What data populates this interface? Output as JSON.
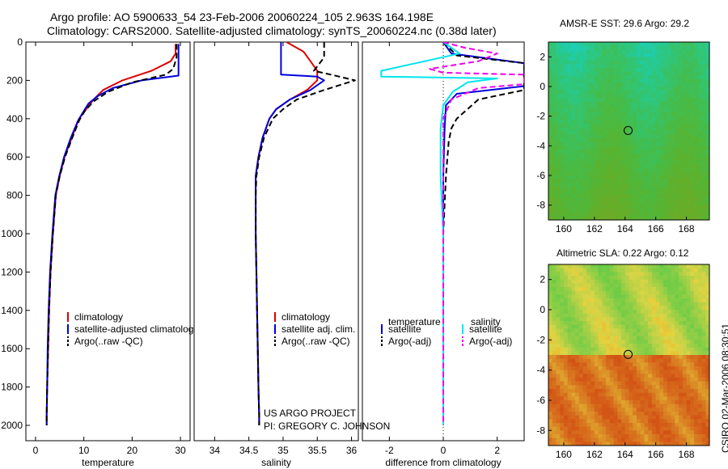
{
  "title": {
    "line1": "Argo profile: AO 5900633_54 23-Feb-2006 20060224_105 2.963S 164.198E",
    "line2": "Climatology: CARS2000. Satellite-adjusted climatology: synTS_20060224.nc (0.38d later)"
  },
  "colors": {
    "red": "#dd0000",
    "blue": "#0000dd",
    "black": "#000000",
    "cyan": "#00e5ee",
    "magenta": "#ee00ee"
  },
  "credits": {
    "project": "US ARGO PROJECT",
    "pi": "PI: GREGORY C. JOHNSON"
  },
  "stamp": "CSIRO 02-Mar-2006 08:30:51",
  "chart_data": [
    {
      "type": "line",
      "xlabel": "temperature",
      "ylabel": "",
      "xlim": [
        -2,
        32
      ],
      "ylim": [
        0,
        2080
      ],
      "xticks": [
        0,
        10,
        20,
        30
      ],
      "yticks": [
        0,
        200,
        400,
        600,
        800,
        1000,
        1200,
        1400,
        1600,
        1800,
        2000
      ],
      "show_yticks": true,
      "series": [
        {
          "name": "climatology",
          "color": "red",
          "dash": false,
          "x": [
            29,
            29,
            28,
            24,
            18,
            14,
            12,
            10.5,
            9,
            7.5,
            6,
            5,
            4.2,
            3.6,
            3.1,
            2.8,
            2.6,
            2.4,
            2.3,
            2.3
          ],
          "y": [
            10,
            60,
            100,
            150,
            200,
            250,
            300,
            350,
            400,
            500,
            600,
            700,
            800,
            1000,
            1200,
            1400,
            1600,
            1800,
            1950,
            2000
          ]
        },
        {
          "name": "satellite-adjusted climatology",
          "color": "blue",
          "dash": false,
          "x": [
            29.6,
            29.6,
            29.6,
            22,
            16,
            13,
            11,
            10,
            8.8,
            7.3,
            5.9,
            4.9,
            4.1,
            3.5,
            3.0,
            2.7,
            2.5,
            2.4,
            2.3,
            2.3
          ],
          "y": [
            10,
            60,
            175,
            200,
            240,
            280,
            320,
            360,
            410,
            500,
            600,
            700,
            800,
            1000,
            1200,
            1400,
            1600,
            1800,
            1950,
            2000
          ]
        },
        {
          "name": "Argo(..raw -QC)",
          "color": "black",
          "dash": true,
          "x": [
            29.2,
            29.2,
            28.5,
            27,
            20,
            15,
            12,
            10.2,
            9,
            7.6,
            6.1,
            5,
            4.2,
            3.6,
            3.1,
            2.8,
            2.6,
            2.4,
            2.3,
            2.3
          ],
          "y": [
            10,
            80,
            140,
            170,
            210,
            260,
            310,
            360,
            410,
            500,
            600,
            700,
            800,
            1000,
            1200,
            1400,
            1600,
            1800,
            1950,
            2000
          ]
        }
      ],
      "legend": [
        {
          "label": "climatology",
          "color": "red",
          "dash": false
        },
        {
          "label": "satellite-adjusted climatology",
          "color": "blue",
          "dash": false
        },
        {
          "label": "Argo(..raw -QC)",
          "color": "black",
          "dash": true
        }
      ]
    },
    {
      "type": "line",
      "xlabel": "salinity",
      "ylabel": "",
      "xlim": [
        33.7,
        36.1
      ],
      "ylim": [
        0,
        2080
      ],
      "xticks": [
        34,
        34.5,
        35,
        35.5,
        36
      ],
      "yticks": [],
      "show_yticks": false,
      "series": [
        {
          "name": "climatology",
          "color": "red",
          "dash": false,
          "x": [
            35.05,
            35.3,
            35.4,
            35.5,
            35.5,
            35.35,
            35.1,
            34.9,
            34.8,
            34.7,
            34.64,
            34.6,
            34.6,
            34.6,
            34.61,
            34.62,
            34.63,
            34.64,
            34.65,
            34.65
          ],
          "y": [
            0,
            50,
            100,
            150,
            200,
            250,
            300,
            350,
            400,
            500,
            600,
            700,
            800,
            1000,
            1200,
            1400,
            1600,
            1800,
            1950,
            2000
          ]
        },
        {
          "name": "satellite adj. clim.",
          "color": "blue",
          "dash": false,
          "x": [
            34.97,
            34.97,
            34.97,
            35.5,
            35.6,
            35.4,
            35.1,
            34.9,
            34.8,
            34.7,
            34.64,
            34.6,
            34.6,
            34.6,
            34.61,
            34.62,
            34.63,
            34.64,
            34.65,
            34.65
          ],
          "y": [
            0,
            60,
            170,
            180,
            200,
            250,
            300,
            350,
            400,
            500,
            600,
            700,
            800,
            1000,
            1200,
            1400,
            1600,
            1800,
            1950,
            2000
          ]
        },
        {
          "name": "Argo(..raw -QC)",
          "color": "black",
          "dash": true,
          "x": [
            35.6,
            35.6,
            35.45,
            35.7,
            36.05,
            35.6,
            35.2,
            35.0,
            34.85,
            34.72,
            34.65,
            34.61,
            34.6,
            34.6,
            34.61,
            34.62,
            34.63,
            34.64,
            34.65,
            34.65
          ],
          "y": [
            0,
            80,
            150,
            170,
            200,
            250,
            300,
            350,
            400,
            500,
            600,
            700,
            800,
            1000,
            1200,
            1400,
            1600,
            1800,
            1950,
            2000
          ]
        }
      ],
      "legend": [
        {
          "label": "climatology",
          "color": "red",
          "dash": false
        },
        {
          "label": "satellite adj. clim.",
          "color": "blue",
          "dash": false
        },
        {
          "label": "Argo(..raw -QC)",
          "color": "black",
          "dash": true
        }
      ]
    },
    {
      "type": "line",
      "xlabel": "difference from climatology",
      "ylabel": "",
      "xlim": [
        -3,
        3
      ],
      "ylim": [
        0,
        2080
      ],
      "xticks": [
        -2,
        0,
        2
      ],
      "yticks": [],
      "show_yticks": false,
      "zero_line": true,
      "series": [
        {
          "name": "temperature satellite",
          "color": "blue",
          "dash": false,
          "x": [
            0,
            0.3,
            3,
            3,
            3,
            0.5,
            0.1,
            0.05,
            0,
            0,
            0,
            0
          ],
          "y": [
            0,
            60,
            110,
            180,
            230,
            270,
            330,
            450,
            700,
            1000,
            1500,
            2000
          ]
        },
        {
          "name": "temperature Argo(-adj)",
          "color": "black",
          "dash": true,
          "x": [
            0,
            0.5,
            3,
            3,
            3,
            3,
            1.3,
            0.5,
            0.3,
            0.2,
            0.1,
            0,
            0
          ],
          "y": [
            0,
            70,
            110,
            180,
            200,
            250,
            300,
            400,
            450,
            520,
            700,
            1000,
            2000
          ]
        },
        {
          "name": "salinity satellite",
          "color": "cyan",
          "dash": false,
          "x": [
            0,
            0.6,
            -2.3,
            -2.3,
            2,
            0.9,
            0.35,
            0,
            -0.1,
            -0.1,
            0,
            0
          ],
          "y": [
            0,
            60,
            150,
            180,
            190,
            210,
            260,
            330,
            450,
            700,
            1000,
            2000
          ]
        },
        {
          "name": "salinity Argo(-adj)",
          "color": "magenta",
          "dash": true,
          "x": [
            0,
            0.8,
            2,
            1.3,
            -0.5,
            0,
            3,
            3,
            1.3,
            0.3,
            0,
            0
          ],
          "y": [
            0,
            30,
            60,
            100,
            140,
            160,
            170,
            220,
            240,
            300,
            400,
            2000
          ]
        }
      ],
      "legend_headers": {
        "left": "temperature",
        "right": "salinity"
      },
      "legend": [
        {
          "label": "satellite",
          "color": "blue",
          "dash": false,
          "column": "left"
        },
        {
          "label": "Argo(-adj)",
          "color": "black",
          "dash": true,
          "column": "left"
        },
        {
          "label": "satellite",
          "color": "cyan",
          "dash": false,
          "column": "right"
        },
        {
          "label": "Argo(-adj)",
          "color": "magenta",
          "dash": true,
          "column": "right"
        }
      ]
    },
    {
      "type": "heatmap",
      "title": "AMSR-E SST: 29.6 Argo: 29.2",
      "xlim": [
        159,
        169.5
      ],
      "ylim": [
        -9,
        3
      ],
      "xticks": [
        160,
        162,
        164,
        166,
        168
      ],
      "yticks": [
        2,
        0,
        -2,
        -4,
        -6,
        -8
      ],
      "marker": {
        "lon": 164.198,
        "lat": -2.963
      },
      "grid_cols": 42,
      "grid_rows": 48,
      "palette": "sst"
    },
    {
      "type": "heatmap",
      "title": "Altimetric SLA: 0.22 Argo: 0.12",
      "xlim": [
        159,
        169.5
      ],
      "ylim": [
        -9,
        3
      ],
      "xticks": [
        160,
        162,
        164,
        166,
        168
      ],
      "yticks": [
        2,
        0,
        -2,
        -4,
        -6,
        -8
      ],
      "marker": {
        "lon": 164.198,
        "lat": -2.963
      },
      "grid_cols": 42,
      "grid_rows": 48,
      "palette": "sla"
    }
  ]
}
